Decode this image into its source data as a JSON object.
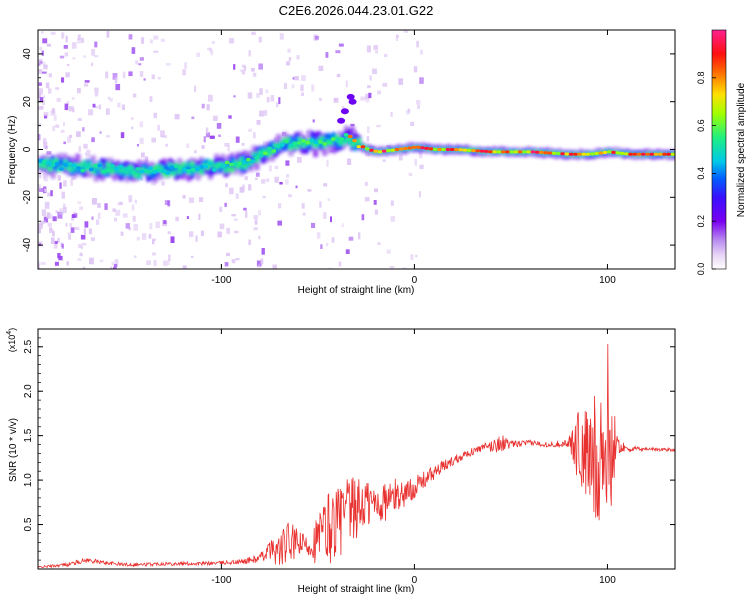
{
  "title": "C2E6.2026.044.23.01.G22",
  "colors": {
    "snr_line": "#e8312f",
    "axes": "#000000",
    "colormap": [
      "#ffffff",
      "#e6d3f5",
      "#b98cf0",
      "#7a00f0",
      "#3a10ff",
      "#0060ff",
      "#00c8e8",
      "#20f080",
      "#a0ff00",
      "#ffe000",
      "#ff7000",
      "#ff1010",
      "#ff2090"
    ]
  },
  "chart_data": [
    {
      "type": "heatmap",
      "name": "spectrogram",
      "title": "C2E6.2026.044.23.01.G22",
      "xlabel": "Height of straight line (km)",
      "ylabel": "Frequency (Hz)",
      "xlim": [
        -195,
        135
      ],
      "ylim": [
        -50,
        50
      ],
      "xticks": [
        -100,
        0,
        100
      ],
      "xtick_labels": [
        "-100",
        "0",
        "100"
      ],
      "yticks": [
        -40,
        -20,
        0,
        20,
        40
      ],
      "ytick_labels": [
        "-40",
        "-20",
        "0",
        "20",
        "40"
      ],
      "ridge": {
        "x": [
          -195,
          -180,
          -160,
          -140,
          -120,
          -100,
          -90,
          -80,
          -70,
          -60,
          -50,
          -40,
          -35,
          -30,
          -25,
          -20,
          -10,
          0,
          10,
          20,
          40,
          60,
          80,
          90,
          100,
          110,
          120,
          135
        ],
        "freq": [
          -6,
          -7,
          -8,
          -9,
          -8,
          -7,
          -6,
          -2,
          2,
          3,
          3,
          4,
          5,
          2,
          0,
          -1,
          0,
          1,
          0,
          0,
          -1,
          -1,
          -2,
          -2,
          -1,
          -2,
          -2,
          -2
        ]
      },
      "colorbar": {
        "label": "Normalized spectral amplitude",
        "range": [
          0,
          1
        ],
        "ticks": [
          0.0,
          0.2,
          0.4,
          0.6,
          0.8
        ],
        "tick_labels": [
          "0.0",
          "0.2",
          "0.4",
          "0.6",
          "0.8"
        ]
      }
    },
    {
      "type": "line",
      "name": "snr",
      "xlabel": "Height of straight line (km)",
      "ylabel": "SNR (10 * v/v)",
      "y_multiplier_label": "(x10",
      "y_multiplier_exponent": "4",
      "xlim": [
        -195,
        135
      ],
      "ylim": [
        0,
        2.7
      ],
      "xticks": [
        -100,
        0,
        100
      ],
      "xtick_labels": [
        "-100",
        "0",
        "100"
      ],
      "yticks": [
        0.5,
        1.0,
        1.5,
        2.0,
        2.5
      ],
      "ytick_labels": [
        "0.5",
        "1.0",
        "1.5",
        "2.0",
        "2.5"
      ],
      "series": [
        {
          "name": "SNR",
          "x": [
            -195,
            -180,
            -170,
            -160,
            -150,
            -140,
            -130,
            -120,
            -110,
            -100,
            -90,
            -80,
            -75,
            -70,
            -65,
            -60,
            -55,
            -50,
            -45,
            -40,
            -35,
            -30,
            -25,
            -20,
            -15,
            -10,
            -5,
            0,
            5,
            10,
            15,
            20,
            25,
            30,
            35,
            40,
            45,
            50,
            60,
            70,
            80,
            85,
            90,
            95,
            100,
            105,
            110,
            120,
            135
          ],
          "base": [
            0.02,
            0.05,
            0.1,
            0.07,
            0.05,
            0.05,
            0.06,
            0.06,
            0.06,
            0.07,
            0.08,
            0.12,
            0.22,
            0.2,
            0.3,
            0.28,
            0.26,
            0.33,
            0.45,
            0.55,
            0.6,
            0.68,
            0.74,
            0.72,
            0.76,
            0.82,
            0.85,
            0.92,
            1.0,
            1.08,
            1.15,
            1.22,
            1.28,
            1.32,
            1.36,
            1.38,
            1.42,
            1.4,
            1.42,
            1.4,
            1.42,
            1.4,
            1.2,
            1.3,
            1.4,
            1.4,
            1.35,
            1.35,
            1.34
          ],
          "amplitude": [
            0.01,
            0.02,
            0.03,
            0.02,
            0.02,
            0.02,
            0.02,
            0.02,
            0.02,
            0.02,
            0.03,
            0.05,
            0.1,
            0.2,
            0.25,
            0.15,
            0.12,
            0.3,
            0.45,
            0.4,
            0.45,
            0.35,
            0.3,
            0.25,
            0.22,
            0.2,
            0.15,
            0.12,
            0.1,
            0.08,
            0.07,
            0.06,
            0.05,
            0.04,
            0.04,
            0.08,
            0.1,
            0.04,
            0.03,
            0.03,
            0.05,
            0.45,
            0.6,
            0.8,
            1.2,
            0.1,
            0.03,
            0.02,
            0.02
          ],
          "ymax_marked": 2.62
        }
      ]
    }
  ]
}
